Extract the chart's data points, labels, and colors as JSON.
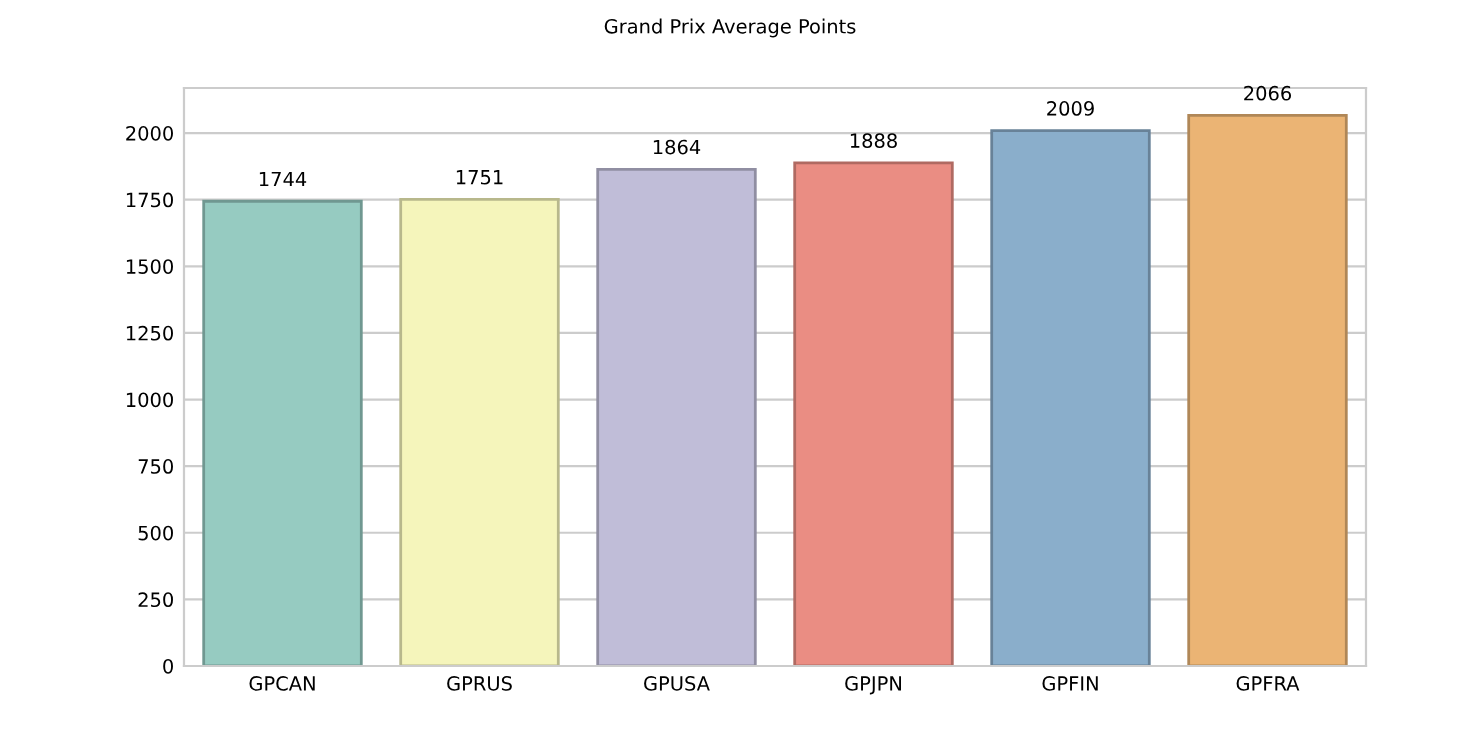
{
  "chart_data": {
    "type": "bar",
    "title": "Grand Prix Average Points",
    "categories": [
      "GPCAN",
      "GPRUS",
      "GPUSA",
      "GPJPN",
      "GPFIN",
      "GPFRA"
    ],
    "values": [
      1744,
      1751,
      1864,
      1888,
      2009,
      2066
    ],
    "colors": [
      "#96cbc1",
      "#f5f5bb",
      "#c0bdd8",
      "#ea8d83",
      "#8aaecb",
      "#ebb474"
    ],
    "ylim": [
      0,
      2169
    ],
    "yticks": [
      0,
      250,
      500,
      750,
      1000,
      1250,
      1500,
      1750,
      2000
    ],
    "grid": "y",
    "data_labels": true
  }
}
